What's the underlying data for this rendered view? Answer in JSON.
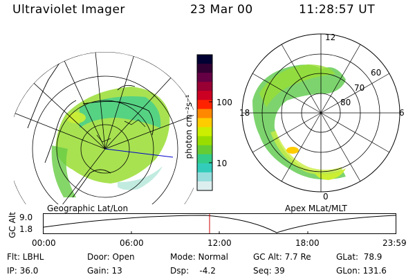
{
  "header": {
    "instrument": "Ultraviolet Imager",
    "date": "23 Mar 00",
    "time": "11:28:57 UT"
  },
  "maps": {
    "geographic_label": "Geographic Lat/Lon",
    "apex_label": "Apex MLat/MLT",
    "mlt_labels": [
      "12",
      "18",
      "6",
      "0"
    ],
    "mlat_labels": [
      "60",
      "70",
      "80"
    ]
  },
  "colorbar": {
    "unit": "photon cm⁻²s⁻¹",
    "ticks": [
      "100",
      "10"
    ],
    "colors": [
      "#000033",
      "#330033",
      "#660044",
      "#990033",
      "#cc0022",
      "#ff2200",
      "#ff8800",
      "#ffcc00",
      "#ccee00",
      "#99dd00",
      "#66cc33",
      "#33cc88",
      "#33ccbb",
      "#99dddd",
      "#ddeeee"
    ]
  },
  "altitude_plot": {
    "axis_title": "GC Alt",
    "y_ticks": [
      "9.0",
      "1.8"
    ],
    "x_ticks": [
      "00:00",
      "06:00",
      "12:00",
      "18:00",
      "23:59"
    ]
  },
  "status": {
    "rows": [
      [
        "Flt: LBHL",
        "Door: Open",
        "Mode: Normal",
        "GC Alt: 7.7 Re",
        "GLat:  78.9"
      ],
      [
        "IP: 36.0",
        "Gain: 13",
        "Dsp:    -4.2",
        "Seq: 39",
        "GLon: 131.6"
      ]
    ]
  }
}
